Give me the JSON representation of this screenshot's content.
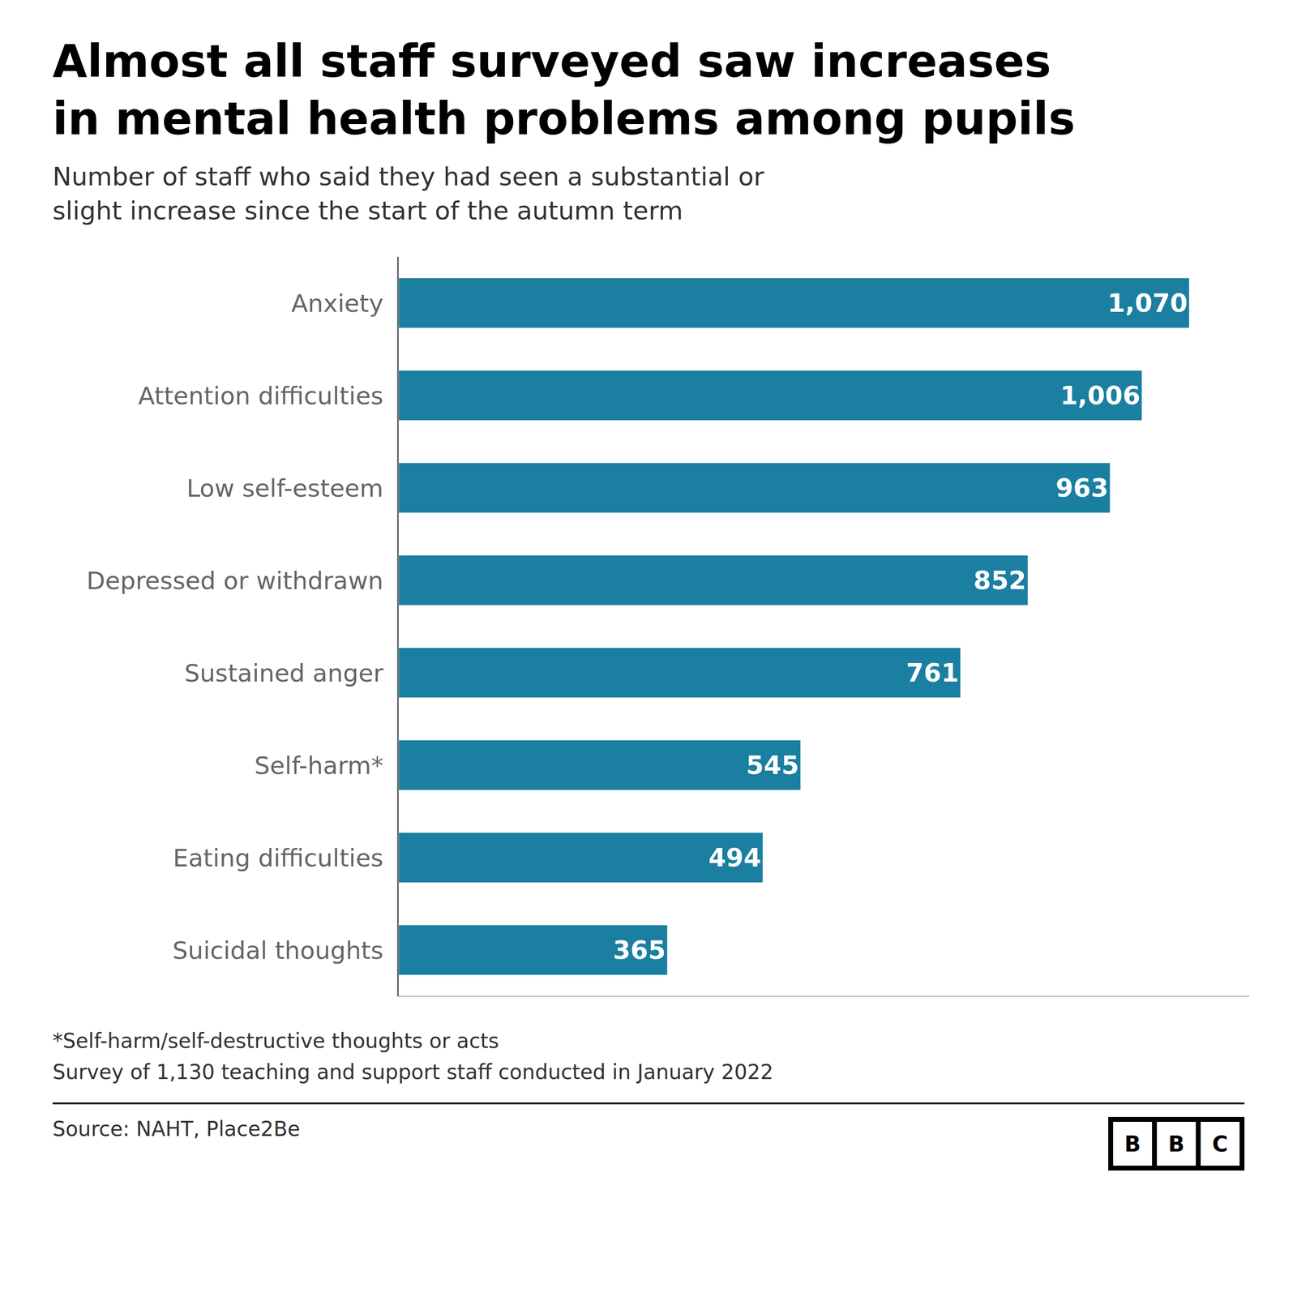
{
  "chart_data": {
    "type": "bar",
    "orientation": "horizontal",
    "title": [
      "Almost all staff surveyed saw increases",
      "in mental health problems among pupils"
    ],
    "subtitle": [
      "Number of staff who said they had seen a substantial or",
      "slight increase since the start of the autumn term"
    ],
    "categories": [
      "Anxiety",
      "Attention difficulties",
      "Low self-esteem",
      "Depressed or withdrawn",
      "Sustained anger",
      "Self-harm*",
      "Eating difficulties",
      "Suicidal thoughts"
    ],
    "values": [
      1070,
      1006,
      963,
      852,
      761,
      545,
      494,
      365
    ],
    "value_labels": [
      "1,070",
      "1,006",
      "963",
      "852",
      "761",
      "545",
      "494",
      "365"
    ],
    "color": "#1a7fa0",
    "xlim": [
      0,
      1150
    ],
    "data_labels": true,
    "tick_labels": "y",
    "grid": false,
    "annotations": [
      "*Self-harm/self-destructive thoughts or acts",
      "Survey of 1,130 teaching and support staff conducted in January 2022"
    ],
    "source": "Source: NAHT, Place2Be",
    "logo": "BBC"
  }
}
